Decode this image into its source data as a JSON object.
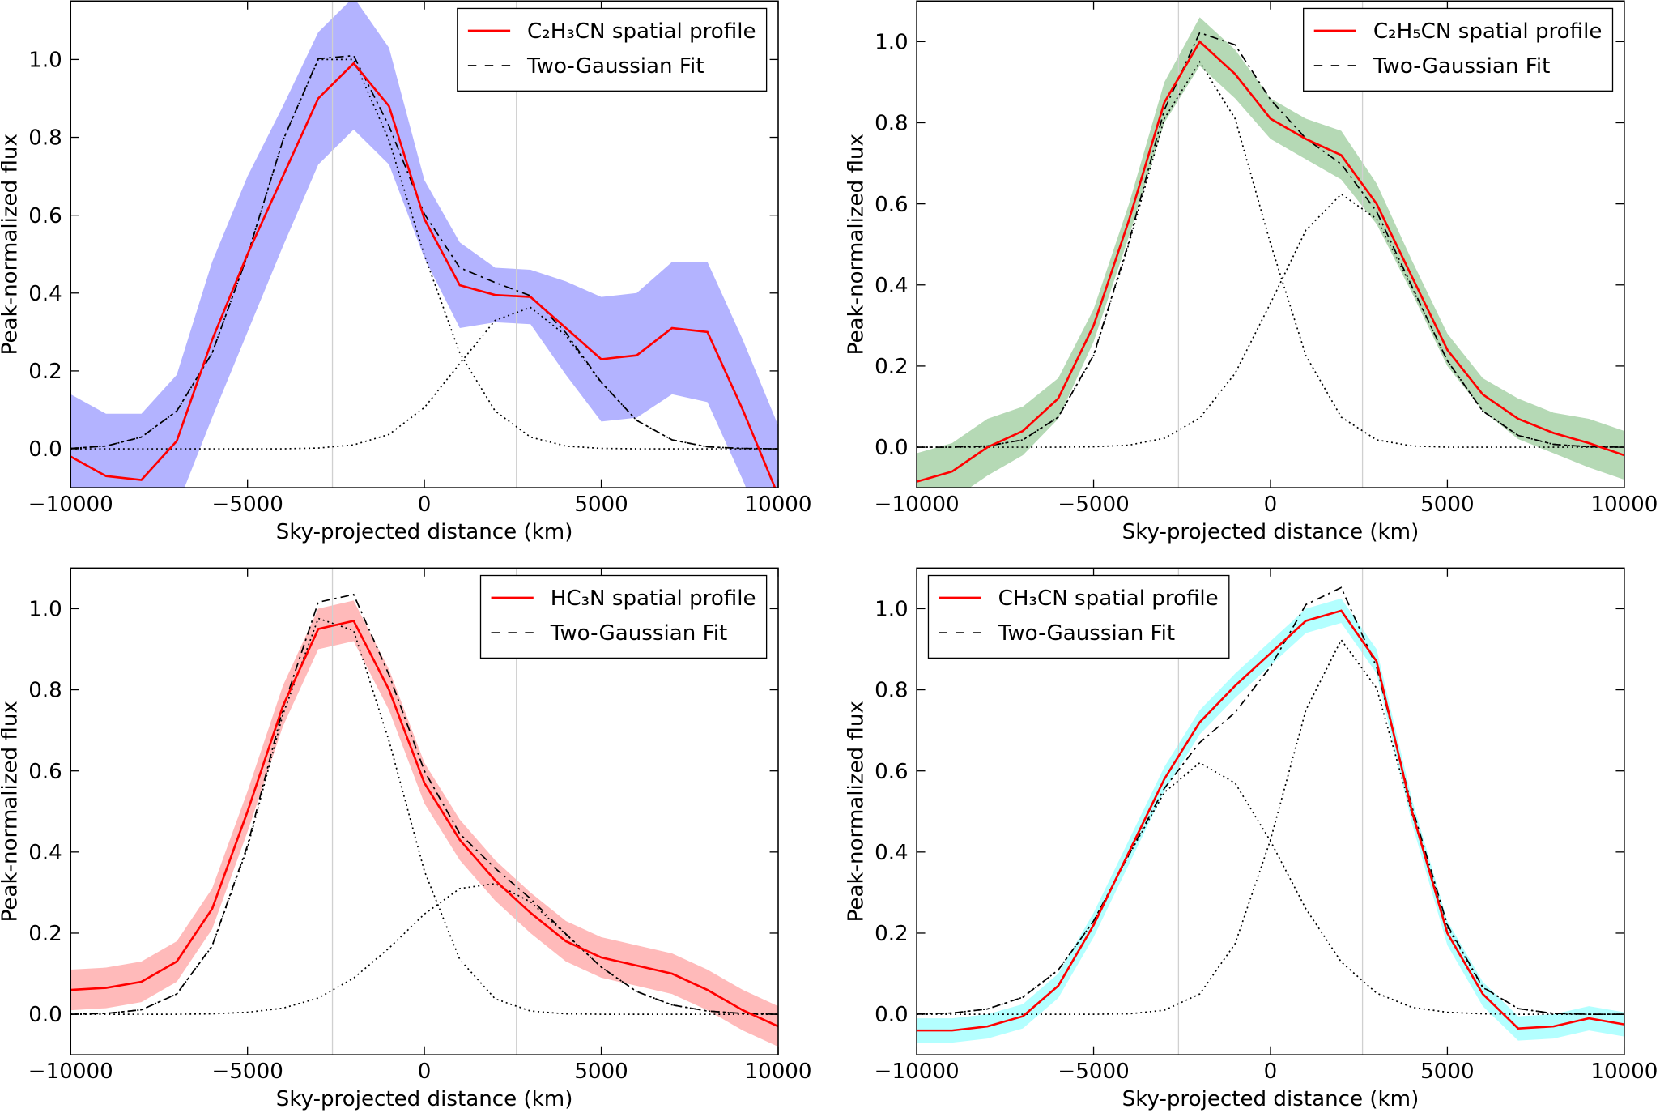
{
  "chart_data": [
    {
      "type": "line",
      "xlabel": "Sky-projected distance (km)",
      "ylabel": "Peak-normalized flux",
      "x": [
        -10000,
        -9000,
        -8000,
        -7000,
        -6000,
        -5000,
        -4000,
        -3000,
        -2000,
        -1000,
        0,
        1000,
        2000,
        3000,
        4000,
        5000,
        6000,
        7000,
        8000,
        9000,
        10000
      ],
      "xlim": [
        -10000,
        10000
      ],
      "ylim": [
        -0.1,
        1.15
      ],
      "xticks": [
        {
          "value": -10000,
          "label": "−10000"
        },
        {
          "value": -5000,
          "label": "−5000"
        },
        0,
        5000,
        10000
      ],
      "yticks": [
        {
          "value": 0,
          "label": "0.0"
        },
        {
          "value": 0.2,
          "label": "0.2"
        },
        {
          "value": 0.4,
          "label": "0.4"
        },
        {
          "value": 0.6,
          "label": "0.6"
        },
        {
          "value": 0.8,
          "label": "0.8"
        },
        {
          "value": 1,
          "label": "1.0"
        }
      ],
      "vlines": [
        -2600,
        2600
      ],
      "legend": "upper right",
      "series": [
        {
          "name": "C₂H₃CN spatial profile",
          "color": "#ff0000",
          "style": "solid",
          "band_color": "#b3b3ff",
          "values": [
            -0.02,
            -0.07,
            -0.08,
            0.02,
            0.28,
            0.5,
            0.7,
            0.9,
            0.99,
            0.88,
            0.59,
            0.42,
            0.395,
            0.39,
            0.31,
            0.23,
            0.24,
            0.31,
            0.3,
            0.1,
            -0.12
          ],
          "error": [
            0.16,
            0.16,
            0.17,
            0.17,
            0.2,
            0.2,
            0.18,
            0.17,
            0.17,
            0.15,
            0.1,
            0.11,
            0.07,
            0.07,
            0.12,
            0.16,
            0.16,
            0.17,
            0.18,
            0.18,
            0.18
          ]
        },
        {
          "name": "Two-Gaussian Fit",
          "color": "#000000",
          "style": "dashdot",
          "values": [
            0.001,
            0.007,
            0.03,
            0.097,
            0.246,
            0.497,
            0.792,
            1.002,
            1.01,
            0.829,
            0.603,
            0.465,
            0.427,
            0.393,
            0.298,
            0.171,
            0.073,
            0.023,
            0.005,
            0.001,
            0
          ]
        },
        {
          "color": "#000000",
          "style": "dotted",
          "values": [
            0.001,
            0.007,
            0.03,
            0.097,
            0.246,
            0.497,
            0.792,
            1,
            1,
            0.792,
            0.497,
            0.246,
            0.097,
            0.03,
            0.007,
            0.001,
            0,
            0,
            0,
            0,
            0
          ]
        },
        {
          "color": "#000000",
          "style": "dotted",
          "values": [
            0,
            0,
            0,
            0,
            0,
            0,
            0,
            0.002,
            0.01,
            0.037,
            0.106,
            0.219,
            0.33,
            0.363,
            0.291,
            0.17,
            0.073,
            0.023,
            0.005,
            0.001,
            0
          ]
        }
      ]
    },
    {
      "type": "line",
      "xlabel": "Sky-projected distance (km)",
      "ylabel": "Peak-normalized flux",
      "x": [
        -10000,
        -9000,
        -8000,
        -7000,
        -6000,
        -5000,
        -4000,
        -3000,
        -2000,
        -1000,
        0,
        1000,
        2000,
        3000,
        4000,
        5000,
        6000,
        7000,
        8000,
        9000,
        10000
      ],
      "xlim": [
        -10000,
        10000
      ],
      "ylim": [
        -0.1,
        1.1
      ],
      "xticks": [
        {
          "value": -10000,
          "label": "−10000"
        },
        {
          "value": -5000,
          "label": "−5000"
        },
        0,
        5000,
        10000
      ],
      "yticks": [
        {
          "value": 0,
          "label": "0.0"
        },
        {
          "value": 0.2,
          "label": "0.2"
        },
        {
          "value": 0.4,
          "label": "0.4"
        },
        {
          "value": 0.6,
          "label": "0.6"
        },
        {
          "value": 0.8,
          "label": "0.8"
        },
        {
          "value": 1,
          "label": "1.0"
        }
      ],
      "vlines": [
        -2600,
        2600
      ],
      "legend": "upper right",
      "series": [
        {
          "name": "C₂H₅CN spatial profile",
          "color": "#ff0000",
          "style": "solid",
          "band_color": "#b5d9b5",
          "values": [
            -0.085,
            -0.06,
            0,
            0.04,
            0.12,
            0.3,
            0.56,
            0.85,
            1,
            0.92,
            0.81,
            0.76,
            0.72,
            0.6,
            0.42,
            0.24,
            0.13,
            0.07,
            0.035,
            0.01,
            -0.02
          ],
          "error": [
            0.07,
            0.07,
            0.07,
            0.06,
            0.05,
            0.04,
            0.04,
            0.05,
            0.06,
            0.06,
            0.05,
            0.05,
            0.06,
            0.05,
            0.04,
            0.04,
            0.04,
            0.05,
            0.05,
            0.06,
            0.06
          ]
        },
        {
          "name": "Two-Gaussian Fit",
          "color": "#000000",
          "style": "dashdot",
          "values": [
            0,
            0,
            0.003,
            0.018,
            0.074,
            0.227,
            0.507,
            0.832,
            1.022,
            0.992,
            0.857,
            0.761,
            0.698,
            0.581,
            0.396,
            0.213,
            0.089,
            0.029,
            0.007,
            0.001,
            0
          ]
        },
        {
          "color": "#000000",
          "style": "dotted",
          "values": [
            0,
            0,
            0.003,
            0.018,
            0.074,
            0.226,
            0.502,
            0.81,
            0.95,
            0.81,
            0.502,
            0.226,
            0.074,
            0.018,
            0.003,
            0,
            0,
            0,
            0,
            0,
            0
          ]
        },
        {
          "color": "#000000",
          "style": "dotted",
          "values": [
            0,
            0,
            0,
            0,
            0,
            0.001,
            0.005,
            0.022,
            0.072,
            0.182,
            0.355,
            0.535,
            0.624,
            0.563,
            0.393,
            0.213,
            0.089,
            0.029,
            0.007,
            0.001,
            0
          ]
        }
      ]
    },
    {
      "type": "line",
      "xlabel": "Sky-projected distance (km)",
      "ylabel": "Peak-normalized flux",
      "x": [
        -10000,
        -9000,
        -8000,
        -7000,
        -6000,
        -5000,
        -4000,
        -3000,
        -2000,
        -1000,
        0,
        1000,
        2000,
        3000,
        4000,
        5000,
        6000,
        7000,
        8000,
        9000,
        10000
      ],
      "xlim": [
        -10000,
        10000
      ],
      "ylim": [
        -0.1,
        1.1
      ],
      "xticks": [
        {
          "value": -10000,
          "label": "−10000"
        },
        {
          "value": -5000,
          "label": "−5000"
        },
        0,
        5000,
        10000
      ],
      "yticks": [
        {
          "value": 0,
          "label": "0.0"
        },
        {
          "value": 0.2,
          "label": "0.2"
        },
        {
          "value": 0.4,
          "label": "0.4"
        },
        {
          "value": 0.6,
          "label": "0.6"
        },
        {
          "value": 0.8,
          "label": "0.8"
        },
        {
          "value": 1,
          "label": "1.0"
        }
      ],
      "vlines": [
        -2600,
        2600
      ],
      "legend": "upper right",
      "series": [
        {
          "name": "HC₃N spatial profile",
          "color": "#ff0000",
          "style": "solid",
          "band_color": "#ffbaba",
          "values": [
            0.06,
            0.065,
            0.08,
            0.13,
            0.26,
            0.5,
            0.76,
            0.95,
            0.97,
            0.8,
            0.57,
            0.43,
            0.33,
            0.25,
            0.18,
            0.14,
            0.12,
            0.1,
            0.06,
            0.01,
            -0.03
          ],
          "error": [
            0.05,
            0.05,
            0.05,
            0.05,
            0.05,
            0.05,
            0.05,
            0.05,
            0.05,
            0.05,
            0.05,
            0.05,
            0.05,
            0.05,
            0.05,
            0.05,
            0.05,
            0.05,
            0.05,
            0.05,
            0.05
          ]
        },
        {
          "name": "Two-Gaussian Fit",
          "color": "#000000",
          "style": "dashdot",
          "values": [
            0,
            0.002,
            0.011,
            0.05,
            0.169,
            0.416,
            0.754,
            1.016,
            1.035,
            0.837,
            0.6,
            0.445,
            0.36,
            0.285,
            0.198,
            0.116,
            0.056,
            0.023,
            0.008,
            0.002,
            0
          ]
        },
        {
          "color": "#000000",
          "style": "dotted",
          "values": [
            0,
            0.002,
            0.011,
            0.05,
            0.168,
            0.411,
            0.739,
            0.976,
            0.946,
            0.674,
            0.353,
            0.135,
            0.038,
            0.008,
            0.001,
            0,
            0,
            0,
            0,
            0,
            0
          ]
        },
        {
          "color": "#000000",
          "style": "dotted",
          "values": [
            0,
            0,
            0,
            0,
            0.001,
            0.005,
            0.015,
            0.04,
            0.089,
            0.163,
            0.247,
            0.31,
            0.322,
            0.277,
            0.197,
            0.116,
            0.056,
            0.023,
            0.008,
            0.002,
            0
          ]
        }
      ]
    },
    {
      "type": "line",
      "xlabel": "Sky-projected distance (km)",
      "ylabel": "Peak-normalized flux",
      "x": [
        -10000,
        -9000,
        -8000,
        -7000,
        -6000,
        -5000,
        -4000,
        -3000,
        -2000,
        -1000,
        0,
        1000,
        2000,
        3000,
        4000,
        5000,
        6000,
        7000,
        8000,
        9000,
        10000
      ],
      "xlim": [
        -10000,
        10000
      ],
      "ylim": [
        -0.1,
        1.1
      ],
      "xticks": [
        {
          "value": -10000,
          "label": "−10000"
        },
        {
          "value": -5000,
          "label": "−5000"
        },
        0,
        5000,
        10000
      ],
      "yticks": [
        {
          "value": 0,
          "label": "0.0"
        },
        {
          "value": 0.2,
          "label": "0.2"
        },
        {
          "value": 0.4,
          "label": "0.4"
        },
        {
          "value": 0.6,
          "label": "0.6"
        },
        {
          "value": 0.8,
          "label": "0.8"
        },
        {
          "value": 1,
          "label": "1.0"
        }
      ],
      "vlines": [
        -2600,
        2600
      ],
      "legend": "upper left",
      "series": [
        {
          "name": "CH₃CN spatial profile",
          "color": "#ff0000",
          "style": "solid",
          "band_color": "#b3ffff",
          "values": [
            -0.04,
            -0.04,
            -0.03,
            -0.005,
            0.07,
            0.22,
            0.4,
            0.58,
            0.72,
            0.81,
            0.89,
            0.97,
            0.995,
            0.87,
            0.5,
            0.2,
            0.05,
            -0.035,
            -0.03,
            -0.01,
            -0.025
          ],
          "error": [
            0.03,
            0.03,
            0.03,
            0.03,
            0.03,
            0.03,
            0.03,
            0.03,
            0.03,
            0.03,
            0.03,
            0.03,
            0.03,
            0.03,
            0.03,
            0.03,
            0.03,
            0.03,
            0.03,
            0.03,
            0.03
          ]
        },
        {
          "name": "Two-Gaussian Fit",
          "color": "#000000",
          "style": "dashdot",
          "values": [
            0.001,
            0.003,
            0.013,
            0.042,
            0.109,
            0.23,
            0.394,
            0.557,
            0.67,
            0.744,
            0.857,
            1.01,
            1.052,
            0.856,
            0.511,
            0.22,
            0.067,
            0.014,
            0.002,
            0,
            0
          ]
        },
        {
          "color": "#000000",
          "style": "dotted",
          "values": [
            0.001,
            0.003,
            0.013,
            0.042,
            0.109,
            0.23,
            0.393,
            0.547,
            0.62,
            0.57,
            0.427,
            0.26,
            0.129,
            0.052,
            0.017,
            0.005,
            0.001,
            0,
            0,
            0,
            0
          ]
        },
        {
          "color": "#000000",
          "style": "dotted",
          "values": [
            0,
            0,
            0,
            0,
            0,
            0,
            0.001,
            0.01,
            0.05,
            0.174,
            0.43,
            0.75,
            0.923,
            0.804,
            0.494,
            0.215,
            0.066,
            0.014,
            0.002,
            0,
            0
          ]
        }
      ]
    }
  ]
}
